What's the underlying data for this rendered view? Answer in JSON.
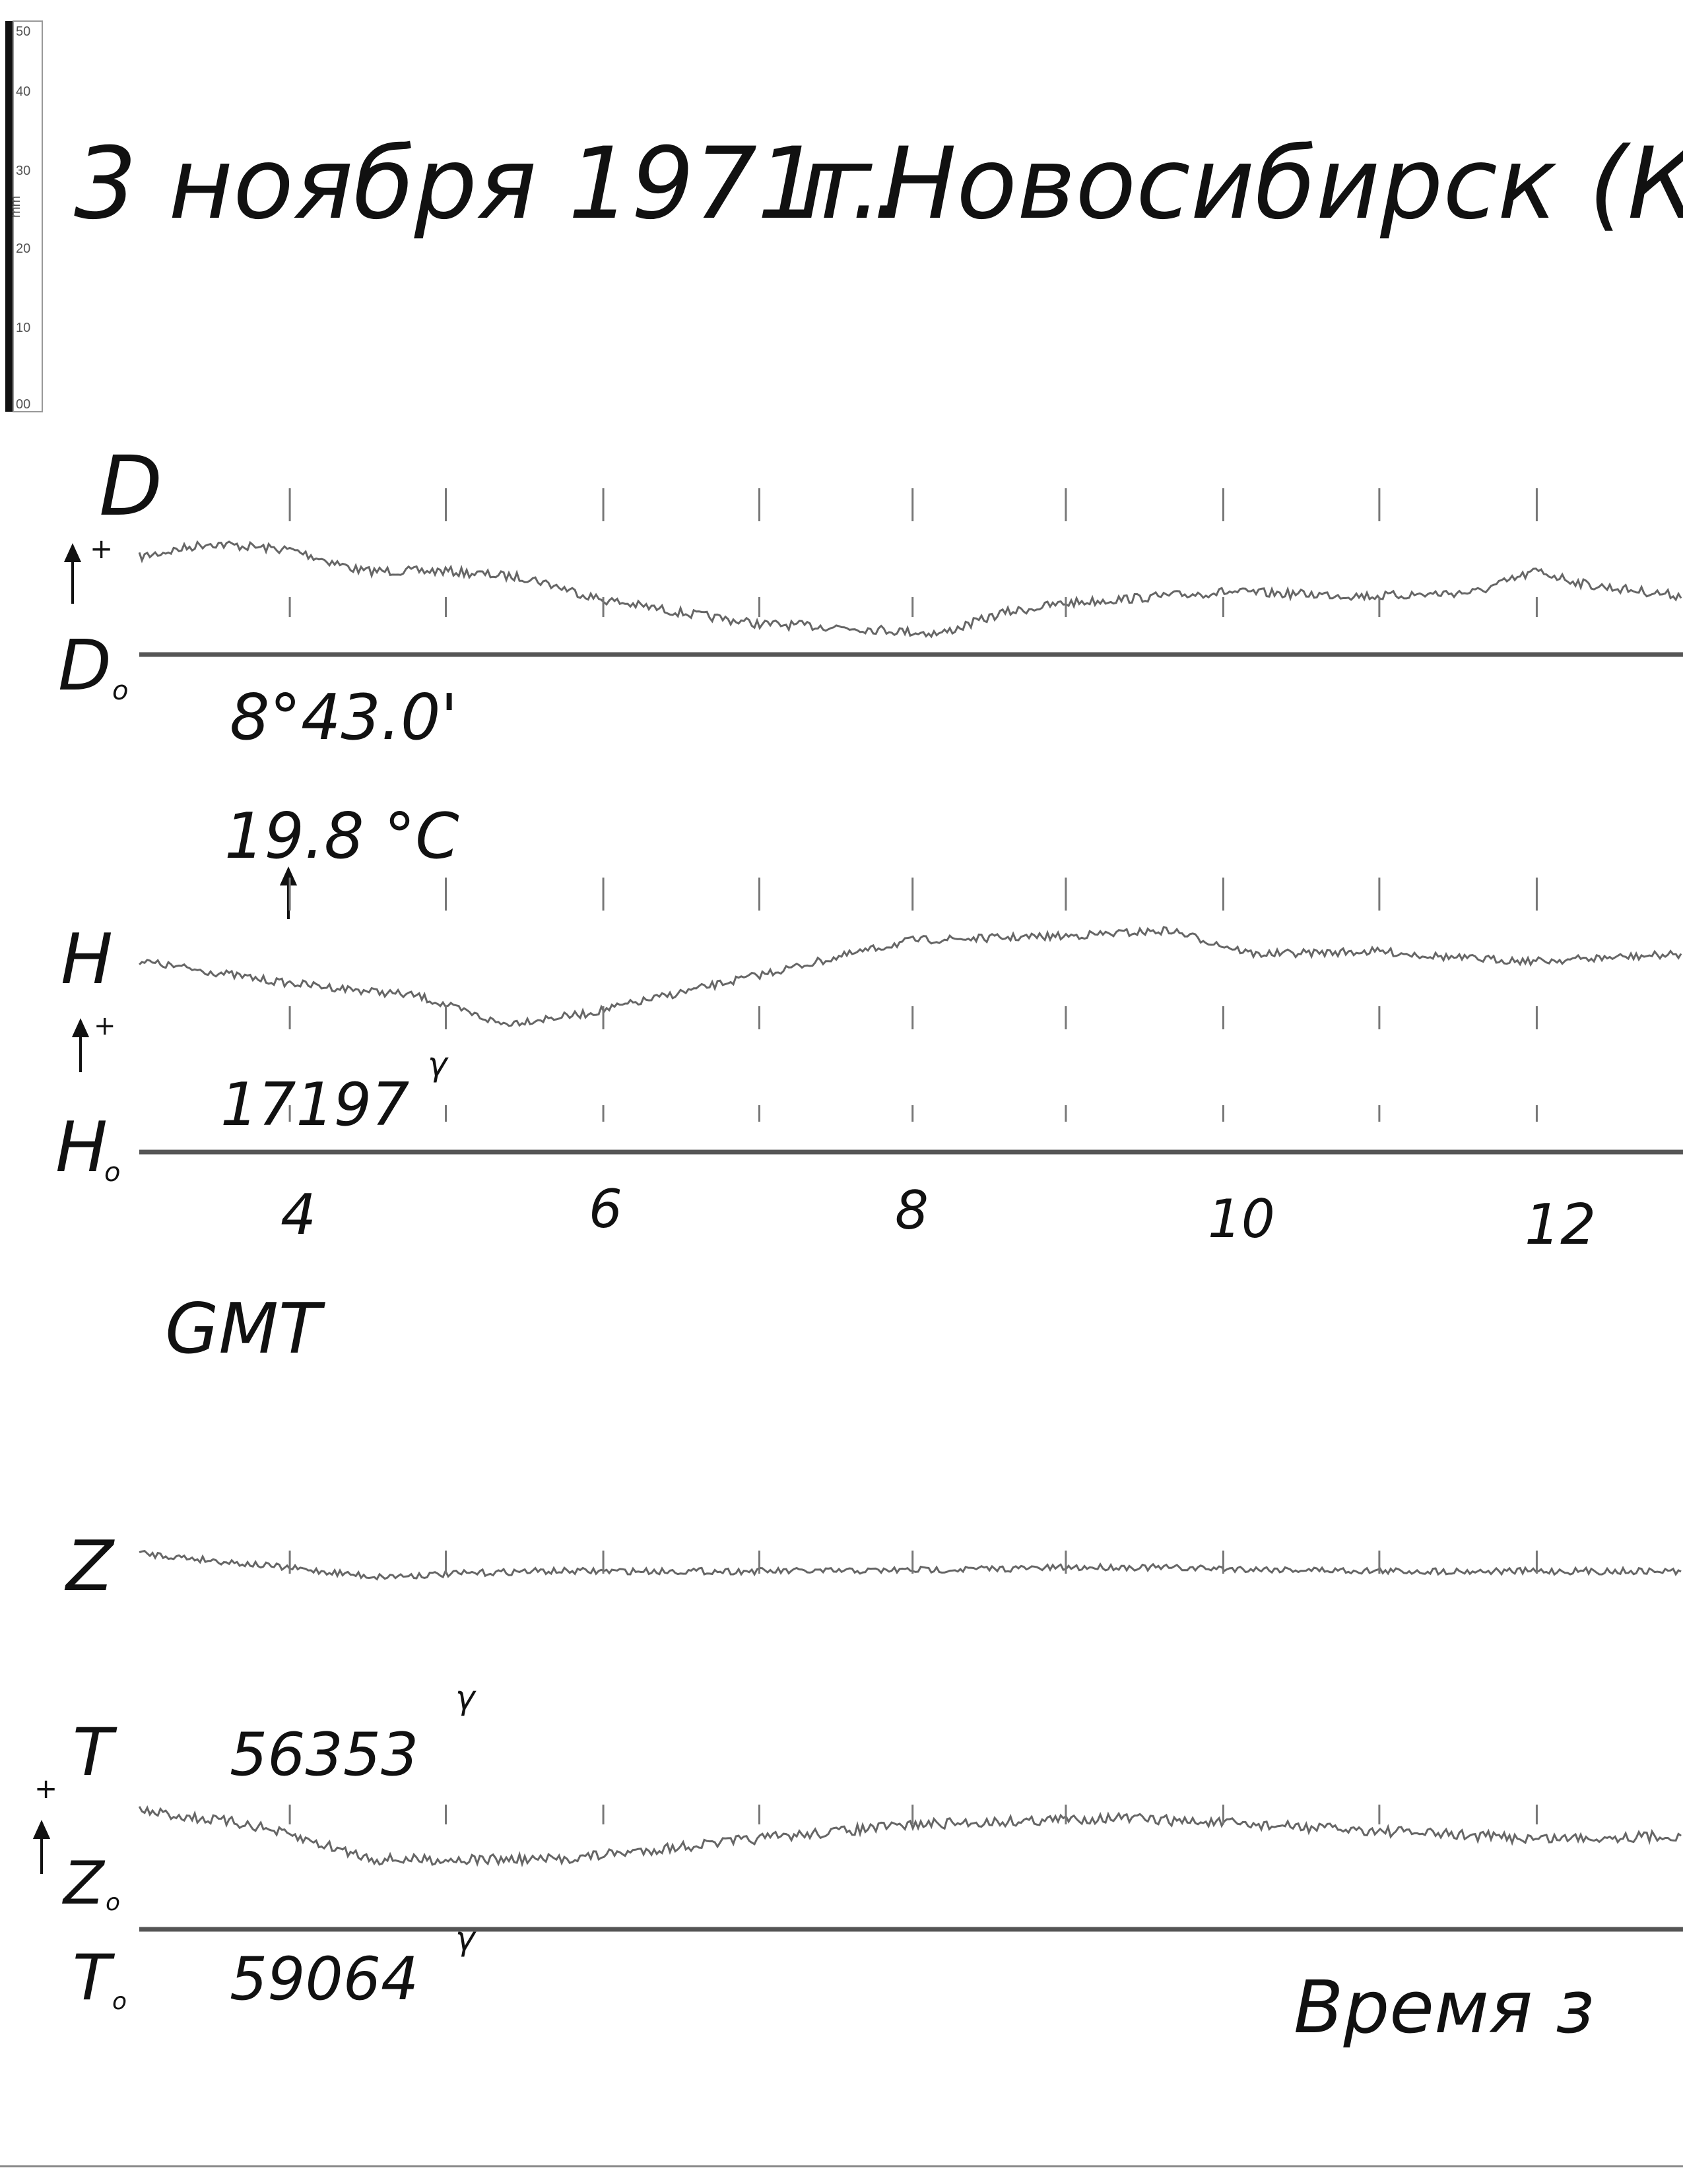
{
  "ruler": {
    "labels": [
      "50",
      "40",
      "30",
      "20",
      "10",
      "00"
    ],
    "unit": "mm"
  },
  "header": {
    "date": "3 ноября 1971г.",
    "place": "г.Новосибирск (Клю"
  },
  "plus": "+",
  "gamma": "γ",
  "subscript": "o",
  "channels": {
    "D": {
      "label": "D",
      "base_value": "8°43.0'"
    },
    "H": {
      "label": "H",
      "temperature": "19.8 °C",
      "base_value": "17197"
    },
    "Z": {
      "label": "Z"
    },
    "T": {
      "label": "T",
      "value": "56353",
      "base_value": "59064"
    }
  },
  "time_axis": {
    "ticks": [
      "4",
      "6",
      "8",
      "10",
      "12"
    ],
    "label": "GMT"
  },
  "footer": "Время з"
}
